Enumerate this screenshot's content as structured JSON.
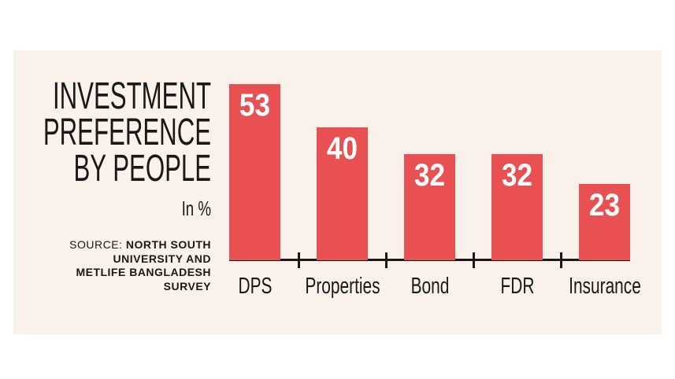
{
  "page": {
    "background": "#ffffff",
    "panel_background": "#faf2ea",
    "text_color": "#1b1718"
  },
  "title": {
    "lines": [
      "INVESTMENT",
      "PREFERENCE",
      "BY PEOPLE"
    ],
    "unit_label": "In %"
  },
  "source": {
    "prefix": "SOURCE:",
    "line1": "NORTH SOUTH",
    "line2": "UNIVERSITY AND",
    "line3": "METLIFE BANGLADESH",
    "line4": "SURVEY"
  },
  "chart_data": {
    "type": "bar",
    "title": "INVESTMENT PREFERENCE BY PEOPLE",
    "subtitle": "In %",
    "categories": [
      "DPS",
      "Properties",
      "Bond",
      "FDR",
      "Insurance"
    ],
    "values": [
      53,
      40,
      32,
      32,
      23
    ],
    "xlabel": "",
    "ylabel": "",
    "ylim": [
      0,
      55
    ],
    "grid": false,
    "legend": "none",
    "value_label_position": "inside-top",
    "bar_color": "#e85052",
    "value_label_color": "#ffffff",
    "axis_color": "#1b1718",
    "source_note": "SOURCE: NORTH SOUTH UNIVERSITY AND METLIFE BANGLADESH SURVEY"
  }
}
